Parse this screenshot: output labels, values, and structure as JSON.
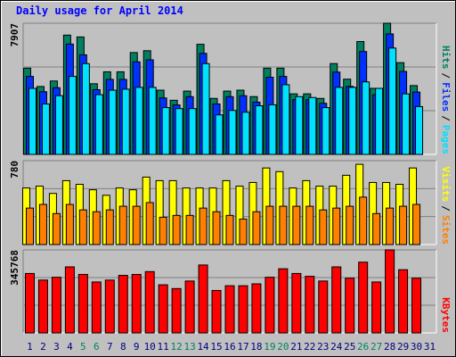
{
  "chart_data": [
    {
      "type": "bar",
      "title": "Daily usage for April 2014",
      "ylim": [
        0,
        7907
      ],
      "yticks": [
        7907
      ],
      "legend_separator": "/",
      "series": [
        {
          "name": "Hits",
          "color": "#008060",
          "values": [
            5198,
            4092,
            4424,
            7189,
            7078,
            4258,
            4977,
            4977,
            6138,
            6249,
            3871,
            3263,
            3816,
            6636,
            3373,
            3816,
            3871,
            3484,
            5198,
            5198,
            3650,
            3650,
            3373,
            5475,
            4535,
            6802,
            3982,
            7907,
            5530,
            4148,
            null
          ]
        },
        {
          "name": "Files",
          "color": "#0030ff",
          "values": [
            4700,
            3780,
            4020,
            6650,
            6000,
            3900,
            4520,
            4520,
            5580,
            5700,
            3400,
            2980,
            3480,
            6090,
            3040,
            3480,
            3540,
            3150,
            4650,
            4700,
            3300,
            3300,
            3080,
            4960,
            4100,
            6200,
            3600,
            7260,
            5000,
            3760,
            null
          ]
        },
        {
          "name": "Pages",
          "color": "#00e0ff",
          "values": [
            3980,
            3040,
            3540,
            4700,
            5470,
            3600,
            3870,
            3930,
            4040,
            4040,
            2820,
            2760,
            2760,
            5470,
            2380,
            2650,
            2540,
            2930,
            2990,
            4200,
            3480,
            3430,
            2820,
            4040,
            4040,
            4370,
            3980,
            6410,
            3650,
            2880,
            null
          ]
        }
      ]
    },
    {
      "type": "bar",
      "ylim": [
        0,
        780
      ],
      "yticks": [
        780
      ],
      "legend_separator": "/",
      "series": [
        {
          "name": "Visits",
          "color": "#ffff00",
          "values": [
            526,
            543,
            475,
            594,
            560,
            509,
            458,
            526,
            509,
            627,
            594,
            594,
            526,
            526,
            526,
            594,
            543,
            577,
            712,
            678,
            526,
            594,
            543,
            543,
            644,
            746,
            577,
            577,
            560,
            712,
            null
          ]
        },
        {
          "name": "Sites",
          "color": "#ff8000",
          "values": [
            339,
            373,
            288,
            373,
            322,
            305,
            322,
            356,
            356,
            390,
            254,
            271,
            271,
            339,
            305,
            271,
            237,
            305,
            356,
            356,
            356,
            356,
            322,
            339,
            356,
            441,
            288,
            339,
            356,
            373,
            null
          ]
        }
      ]
    },
    {
      "type": "bar",
      "ylim": [
        0,
        345768
      ],
      "yticks": [
        345768
      ],
      "categories": [
        "1",
        "2",
        "3",
        "4",
        "5",
        "6",
        "7",
        "8",
        "9",
        "10",
        "11",
        "12",
        "13",
        "14",
        "15",
        "16",
        "17",
        "18",
        "19",
        "20",
        "21",
        "22",
        "23",
        "24",
        "25",
        "26",
        "27",
        "28",
        "29",
        "30",
        "31"
      ],
      "category_colors": [
        "#000080",
        "#000080",
        "#000080",
        "#000080",
        "#008060",
        "#008060",
        "#000080",
        "#000080",
        "#000080",
        "#000080",
        "#000080",
        "#008060",
        "#008060",
        "#000080",
        "#000080",
        "#000080",
        "#000080",
        "#000080",
        "#008060",
        "#008060",
        "#000080",
        "#000080",
        "#000080",
        "#000080",
        "#000080",
        "#008060",
        "#008060",
        "#000080",
        "#000080",
        "#000080",
        "#000080"
      ],
      "series": [
        {
          "name": "KBytes",
          "color": "#ff0000",
          "values": [
            247527,
            220024,
            231811,
            275030,
            243598,
            212166,
            220024,
            239669,
            243598,
            255385,
            200379,
            184663,
            216095,
            282888,
            176805,
            196450,
            196450,
            204308,
            231811,
            267172,
            247527,
            235740,
            216095,
            275030,
            227882,
            294675,
            212166,
            345768,
            263243,
            227882,
            null
          ]
        }
      ]
    }
  ]
}
